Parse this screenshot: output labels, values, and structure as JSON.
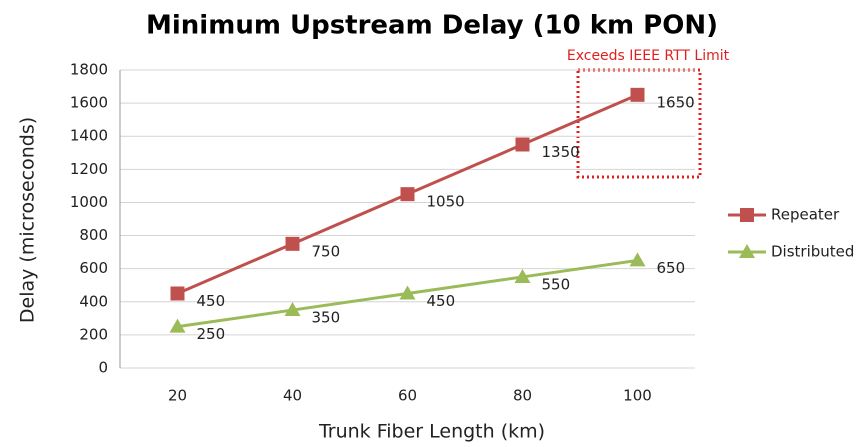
{
  "chart_data": {
    "type": "line",
    "title": "Minimum Upstream Delay (10 km PON)",
    "x_label": "Trunk Fiber Length (km)",
    "y_label": "Delay (microseconds)",
    "annotation": "Exceeds IEEE RTT Limit",
    "categories": [
      "20",
      "40",
      "60",
      "80",
      "100"
    ],
    "series": [
      {
        "name": "Repeater",
        "color": "#c0504d",
        "marker": "square",
        "values": [
          450,
          750,
          1050,
          1350,
          1650
        ]
      },
      {
        "name": "Distributed",
        "color": "#9bbb59",
        "marker": "triangle",
        "values": [
          250,
          350,
          450,
          550,
          650
        ]
      }
    ],
    "ylim": [
      0,
      1800
    ],
    "yticks": [
      0,
      200,
      400,
      600,
      800,
      1000,
      1200,
      1400,
      1600,
      1800
    ],
    "grid": true,
    "legend": "right"
  }
}
